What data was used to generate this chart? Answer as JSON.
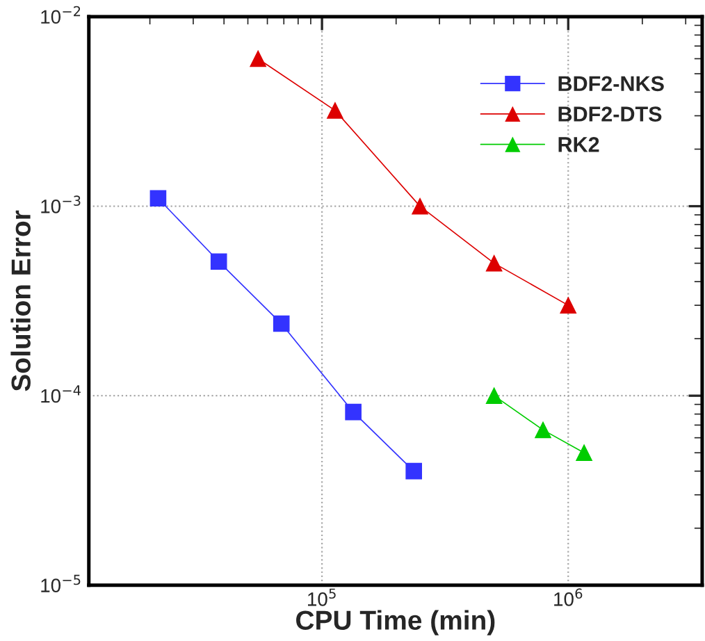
{
  "chart_data": {
    "type": "line",
    "xlabel": "CPU Time (min)",
    "ylabel": "Solution Error",
    "log": "xy",
    "grid": true,
    "legend": "top right",
    "line_style": "solid",
    "xlim": [
      11300,
      3500000
    ],
    "ylim": [
      1e-05,
      0.01
    ],
    "xticks": [
      {
        "value": 100000,
        "label": "10$^{5}$"
      },
      {
        "value": 1000000,
        "label": "10$^{6}$"
      }
    ],
    "yticks": [
      {
        "value": 1e-05,
        "label": "10$^{−5}$"
      },
      {
        "value": 0.0001,
        "label": "10$^{−4}$"
      },
      {
        "value": 0.001,
        "label": "10$^{−3}$"
      },
      {
        "value": 0.01,
        "label": "10$^{−2}$"
      }
    ],
    "series": [
      {
        "name": "BDF2-NKS",
        "color": "#3333ff",
        "marker": "square",
        "x": [
          21600,
          38100,
          68400,
          134000,
          236000
        ],
        "values": [
          0.0011,
          0.00051,
          0.00024,
          8.2e-05,
          4e-05
        ]
      },
      {
        "name": "BDF2-DTS",
        "color": "#dd0000",
        "marker": "triangle",
        "x": [
          55000,
          113000,
          250000,
          500000,
          1000000
        ],
        "values": [
          0.006,
          0.0032,
          0.001,
          0.0005,
          0.0003
        ]
      },
      {
        "name": "RK2",
        "color": "#00cc00",
        "marker": "triangle",
        "x": [
          500000,
          790000,
          1160000
        ],
        "values": [
          0.0001,
          6.6e-05,
          5e-05
        ]
      }
    ]
  }
}
